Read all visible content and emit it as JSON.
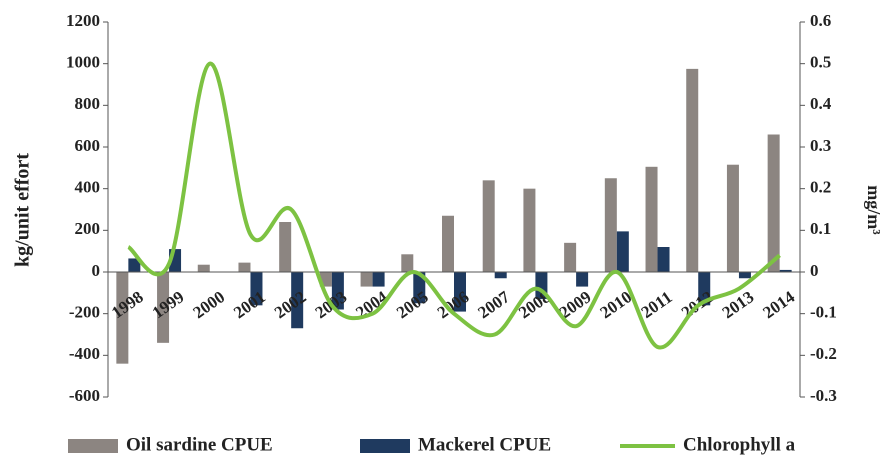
{
  "chart_data": {
    "type": "bar-line",
    "categories": [
      "1998",
      "1999",
      "2000",
      "2001",
      "2002",
      "2003",
      "2004",
      "2005",
      "2006",
      "2007",
      "2008",
      "2009",
      "2010",
      "2011",
      "2012",
      "2013",
      "2014"
    ],
    "series": [
      {
        "name": "Oil sardine CPUE",
        "color": "#8c8581",
        "type": "bar",
        "values": [
          -440,
          -340,
          35,
          45,
          240,
          -70,
          -70,
          85,
          270,
          440,
          400,
          140,
          450,
          505,
          975,
          515,
          660
        ]
      },
      {
        "name": "Mackerel CPUE",
        "color": "#1f3a5f",
        "type": "bar",
        "values": [
          65,
          110,
          0,
          -160,
          -270,
          -180,
          -70,
          -150,
          -190,
          -30,
          -130,
          -70,
          195,
          120,
          -160,
          -30,
          10
        ]
      },
      {
        "name": "Chlorophyll a",
        "color": "#7dc242",
        "type": "line",
        "axis": "y2",
        "values": [
          0.06,
          0.02,
          0.5,
          0.09,
          0.15,
          -0.08,
          -0.1,
          0.0,
          -0.1,
          -0.15,
          -0.04,
          -0.13,
          0.0,
          -0.18,
          -0.08,
          -0.04,
          0.04
        ]
      }
    ],
    "ylabel": "kg/unit effort",
    "y2label": "mg/m³",
    "ylim": [
      -600,
      1200
    ],
    "yticks": [
      -600,
      -400,
      -200,
      0,
      200,
      400,
      600,
      800,
      1000,
      1200
    ],
    "y2lim": [
      -0.3,
      0.6
    ],
    "y2ticks": [
      -0.3,
      -0.2,
      -0.1,
      0,
      0.1,
      0.2,
      0.3,
      0.4,
      0.5,
      0.6
    ],
    "legend": "bottom"
  }
}
